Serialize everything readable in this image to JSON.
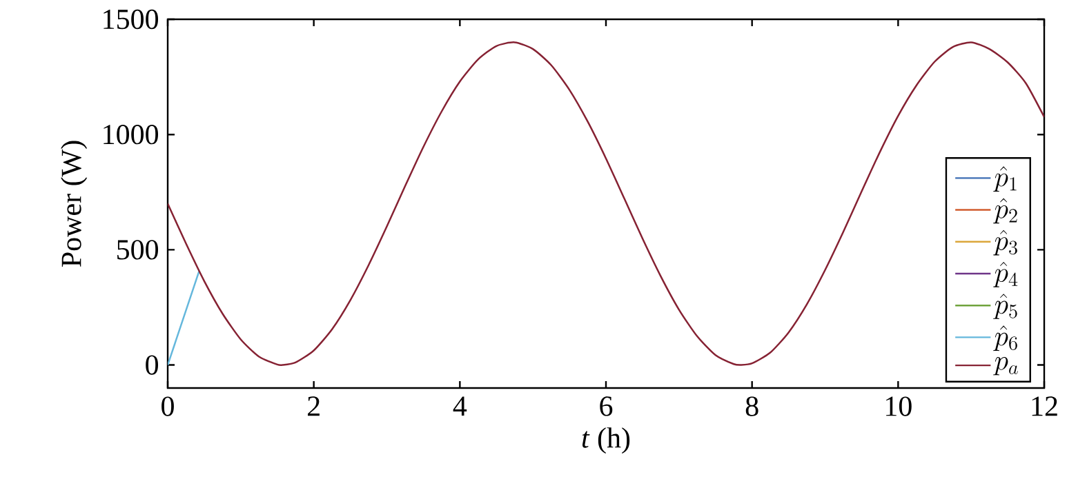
{
  "chart_data": {
    "type": "line",
    "xlabel": "*t* (h)",
    "ylabel": "Power (W)",
    "xlim": [
      0,
      12
    ],
    "ylim": [
      -100,
      1500
    ],
    "xticks": [
      0,
      2,
      4,
      6,
      8,
      10,
      12
    ],
    "yticks": [
      0,
      500,
      1000,
      1500
    ],
    "grid": false,
    "legend": "bottom right",
    "marker": "none",
    "line_style": "solid",
    "series": [
      {
        "name": "\\hat{p}_1",
        "color": "#3c6eb4"
      },
      {
        "name": "\\hat{p}_2",
        "color": "#d15b2d"
      },
      {
        "name": "\\hat{p}_3",
        "color": "#dba63a"
      },
      {
        "name": "\\hat{p}_4",
        "color": "#6e3488"
      },
      {
        "name": "\\hat{p}_5",
        "color": "#6fa33c"
      },
      {
        "name": "\\hat{p}_6",
        "color": "#64b7dc",
        "x": [
          0,
          0.43
        ],
        "values": [
          0,
          407
        ]
      },
      {
        "name": "p_a",
        "color": "#862233",
        "x": [
          0,
          0.25,
          0.5,
          0.75,
          1.0,
          1.25,
          1.5,
          1.57,
          1.75,
          2.0,
          2.25,
          2.5,
          2.75,
          3.0,
          3.25,
          3.5,
          3.75,
          4.0,
          4.25,
          4.5,
          4.75,
          5.0,
          5.25,
          5.5,
          5.75,
          6.0,
          6.25,
          6.5,
          6.75,
          7.0,
          7.25,
          7.5,
          7.75,
          7.85,
          8.0,
          8.25,
          8.5,
          8.75,
          9.0,
          9.25,
          9.5,
          9.75,
          10.0,
          10.25,
          10.5,
          10.75,
          11.0,
          11.25,
          11.5,
          11.75,
          12.0
        ],
        "values": [
          700,
          527,
          364,
          223,
          111,
          36,
          2,
          0,
          11,
          63,
          155,
          281,
          433,
          601,
          776,
          946,
          1100,
          1230,
          1326,
          1384,
          1400,
          1371,
          1301,
          1194,
          1056,
          896,
          723,
          549,
          385,
          240,
          124,
          43,
          4,
          0,
          7,
          54,
          141,
          263,
          412,
          578,
          753,
          924,
          1081,
          1213,
          1316,
          1380,
          1400,
          1371,
          1313,
          1222,
          1076
        ]
      }
    ]
  }
}
